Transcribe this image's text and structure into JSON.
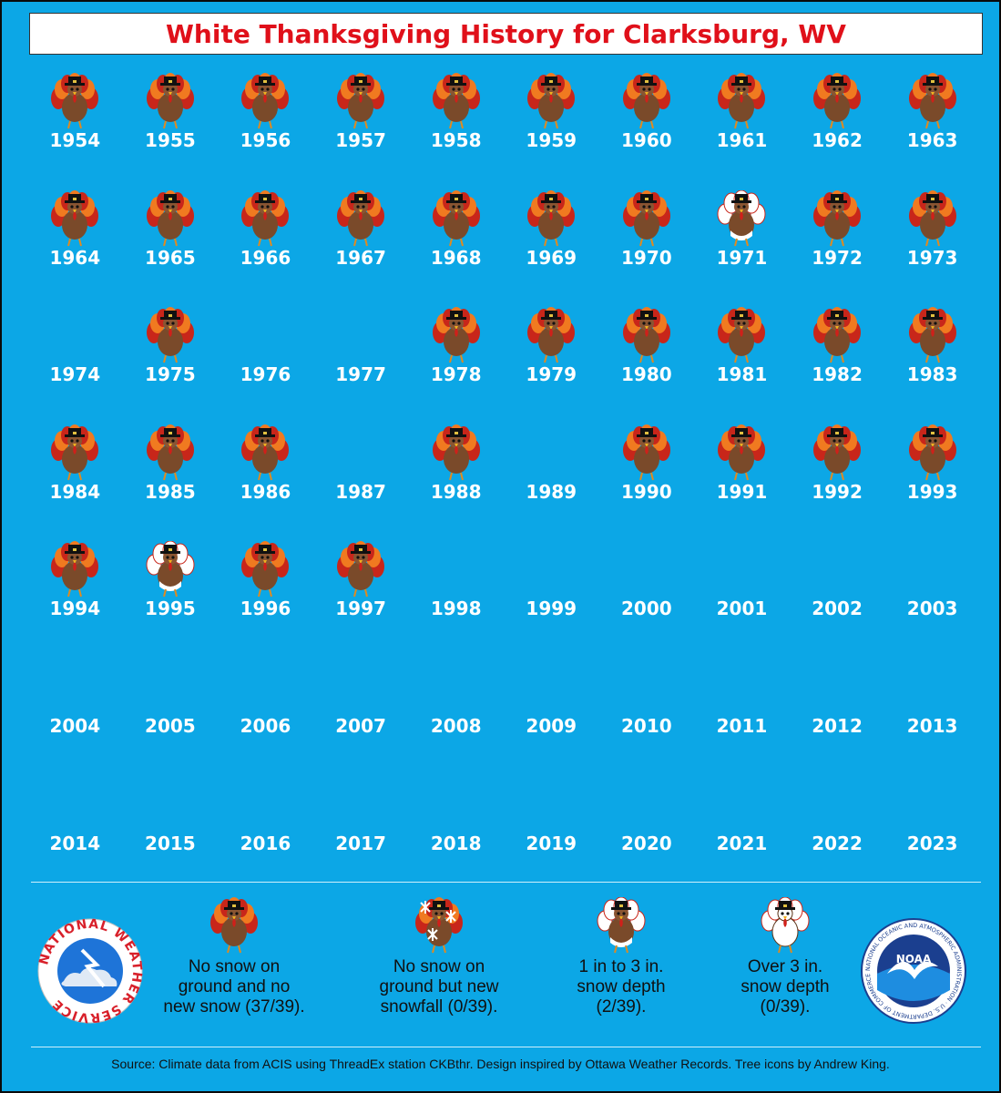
{
  "title": "White Thanksgiving History for Clarksburg, WV",
  "years": [
    {
      "year": "1954",
      "category": "none"
    },
    {
      "year": "1955",
      "category": "none"
    },
    {
      "year": "1956",
      "category": "none"
    },
    {
      "year": "1957",
      "category": "none"
    },
    {
      "year": "1958",
      "category": "none"
    },
    {
      "year": "1959",
      "category": "none"
    },
    {
      "year": "1960",
      "category": "none"
    },
    {
      "year": "1961",
      "category": "none"
    },
    {
      "year": "1962",
      "category": "none"
    },
    {
      "year": "1963",
      "category": "none"
    },
    {
      "year": "1964",
      "category": "none"
    },
    {
      "year": "1965",
      "category": "none"
    },
    {
      "year": "1966",
      "category": "none"
    },
    {
      "year": "1967",
      "category": "none"
    },
    {
      "year": "1968",
      "category": "none"
    },
    {
      "year": "1969",
      "category": "none"
    },
    {
      "year": "1970",
      "category": "none"
    },
    {
      "year": "1971",
      "category": "depth_1_3"
    },
    {
      "year": "1972",
      "category": "none"
    },
    {
      "year": "1973",
      "category": "none"
    },
    {
      "year": "1974",
      "category": ""
    },
    {
      "year": "1975",
      "category": "none"
    },
    {
      "year": "1976",
      "category": ""
    },
    {
      "year": "1977",
      "category": ""
    },
    {
      "year": "1978",
      "category": "none"
    },
    {
      "year": "1979",
      "category": "none"
    },
    {
      "year": "1980",
      "category": "none"
    },
    {
      "year": "1981",
      "category": "none"
    },
    {
      "year": "1982",
      "category": "none"
    },
    {
      "year": "1983",
      "category": "none"
    },
    {
      "year": "1984",
      "category": "none"
    },
    {
      "year": "1985",
      "category": "none"
    },
    {
      "year": "1986",
      "category": "none"
    },
    {
      "year": "1987",
      "category": ""
    },
    {
      "year": "1988",
      "category": "none"
    },
    {
      "year": "1989",
      "category": ""
    },
    {
      "year": "1990",
      "category": "none"
    },
    {
      "year": "1991",
      "category": "none"
    },
    {
      "year": "1992",
      "category": "none"
    },
    {
      "year": "1993",
      "category": "none"
    },
    {
      "year": "1994",
      "category": "none"
    },
    {
      "year": "1995",
      "category": "depth_1_3"
    },
    {
      "year": "1996",
      "category": "none"
    },
    {
      "year": "1997",
      "category": "none"
    },
    {
      "year": "1998",
      "category": ""
    },
    {
      "year": "1999",
      "category": ""
    },
    {
      "year": "2000",
      "category": ""
    },
    {
      "year": "2001",
      "category": ""
    },
    {
      "year": "2002",
      "category": ""
    },
    {
      "year": "2003",
      "category": ""
    },
    {
      "year": "2004",
      "category": ""
    },
    {
      "year": "2005",
      "category": ""
    },
    {
      "year": "2006",
      "category": ""
    },
    {
      "year": "2007",
      "category": ""
    },
    {
      "year": "2008",
      "category": ""
    },
    {
      "year": "2009",
      "category": ""
    },
    {
      "year": "2010",
      "category": ""
    },
    {
      "year": "2011",
      "category": ""
    },
    {
      "year": "2012",
      "category": ""
    },
    {
      "year": "2013",
      "category": ""
    },
    {
      "year": "2014",
      "category": ""
    },
    {
      "year": "2015",
      "category": ""
    },
    {
      "year": "2016",
      "category": ""
    },
    {
      "year": "2017",
      "category": ""
    },
    {
      "year": "2018",
      "category": ""
    },
    {
      "year": "2019",
      "category": ""
    },
    {
      "year": "2020",
      "category": ""
    },
    {
      "year": "2021",
      "category": ""
    },
    {
      "year": "2022",
      "category": ""
    },
    {
      "year": "2023",
      "category": ""
    }
  ],
  "legend": {
    "none": {
      "lines": [
        "No snow on",
        "ground and no",
        "new snow (37/39)."
      ]
    },
    "new_snow": {
      "lines": [
        "No snow on",
        "ground but new",
        "snowfall (0/39)."
      ]
    },
    "depth_1_3": {
      "lines": [
        "1 in to 3 in.",
        "snow depth",
        "(2/39)."
      ]
    },
    "depth_over_3": {
      "lines": [
        "Over 3 in.",
        "snow depth",
        "(0/39)."
      ]
    }
  },
  "source": "Source: Climate data from ACIS using ThreadEx station CKBthr. Design inspired by Ottawa Weather Records. Tree icons by Andrew King.",
  "logos": {
    "nws": {
      "text": "NATIONAL WEATHER SERVICE"
    },
    "noaa": {
      "text": "NOAA",
      "ring_text": "NATIONAL OCEANIC AND ATMOSPHERIC ADMINISTRATION · U.S. DEPARTMENT OF COMMERCE"
    }
  },
  "colors": {
    "background": "#0ca7e6",
    "title": "#e0101a",
    "year_label": "#ffffff",
    "turkey_body": "#7a4a2a",
    "feather_red": "#c8261a",
    "feather_orange": "#f07a20"
  }
}
